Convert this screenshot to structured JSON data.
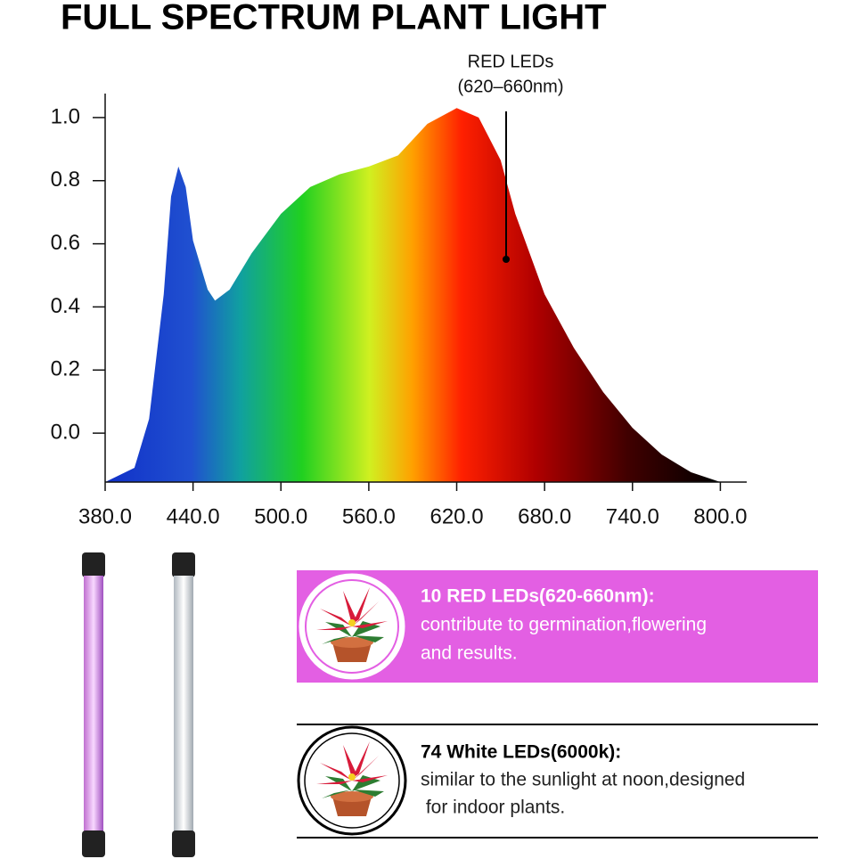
{
  "chart_data": {
    "type": "area",
    "title": "FULL SPECTRUM PLANT LIGHT",
    "x": [
      380,
      400,
      410,
      420,
      425,
      430,
      435,
      440,
      450,
      455,
      465,
      480,
      500,
      520,
      540,
      560,
      580,
      600,
      620,
      635,
      650,
      660,
      680,
      700,
      720,
      740,
      760,
      780,
      800
    ],
    "series": [
      {
        "values": [
          -0.155,
          -0.11,
          0.045,
          0.44,
          0.75,
          0.845,
          0.78,
          0.61,
          0.455,
          0.42,
          0.455,
          0.57,
          0.695,
          0.78,
          0.82,
          0.845,
          0.88,
          0.98,
          1.03,
          1.0,
          0.865,
          0.695,
          0.44,
          0.27,
          0.13,
          0.017,
          -0.068,
          -0.124,
          -0.155
        ]
      }
    ],
    "xlim": [
      380,
      818
    ],
    "ylim": [
      -0.155,
      1.076
    ],
    "xticks": [
      {
        "value": 380,
        "label": "380.0"
      },
      {
        "value": 440,
        "label": "440.0"
      },
      {
        "value": 500,
        "label": "500.0"
      },
      {
        "value": 560,
        "label": "560.0"
      },
      {
        "value": 620,
        "label": "620.0"
      },
      {
        "value": 680,
        "label": "680.0"
      },
      {
        "value": 740,
        "label": "740.0"
      },
      {
        "value": 800,
        "label": "800.0"
      }
    ],
    "yticks": [
      {
        "value": 0,
        "label": "0.0"
      },
      0.2,
      0.4,
      0.6,
      0.8,
      {
        "value": 1,
        "label": "1.0"
      }
    ],
    "annotation": [
      "RED LEDs",
      "(620–660nm)"
    ]
  },
  "panels": [
    {
      "heading": "10 RED LEDs(620-660nm):",
      "lines": [
        "contribute to germination,flowering",
        "and results."
      ]
    },
    {
      "heading": "74 White LEDs(6000k):",
      "lines": [
        "similar to the sunlight at noon,designed",
        " for indoor plants."
      ]
    }
  ]
}
